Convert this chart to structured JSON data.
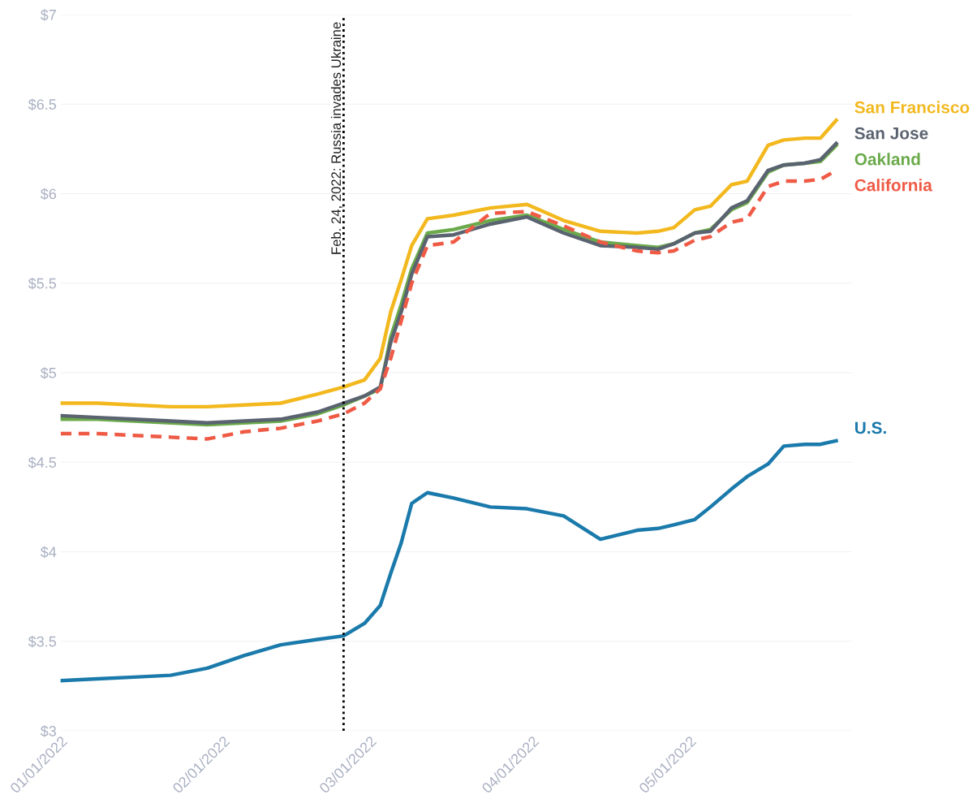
{
  "chart_data": {
    "type": "line",
    "x": [
      "2022-01-01",
      "2022-01-08",
      "2022-01-15",
      "2022-01-22",
      "2022-01-29",
      "2022-02-05",
      "2022-02-12",
      "2022-02-19",
      "2022-02-24",
      "2022-02-28",
      "2022-03-03",
      "2022-03-05",
      "2022-03-07",
      "2022-03-09",
      "2022-03-12",
      "2022-03-17",
      "2022-03-24",
      "2022-03-31",
      "2022-04-07",
      "2022-04-14",
      "2022-04-21",
      "2022-04-25",
      "2022-04-28",
      "2022-05-02",
      "2022-05-05",
      "2022-05-09",
      "2022-05-12",
      "2022-05-16",
      "2022-05-19",
      "2022-05-23",
      "2022-05-26",
      "2022-05-29"
    ],
    "series": [
      {
        "name": "San Francisco",
        "color": "#f2b81e",
        "values": [
          4.83,
          4.83,
          4.82,
          4.81,
          4.81,
          4.82,
          4.83,
          4.88,
          4.92,
          4.96,
          5.08,
          5.34,
          5.52,
          5.71,
          5.86,
          5.88,
          5.92,
          5.94,
          5.85,
          5.79,
          5.78,
          5.79,
          5.81,
          5.91,
          5.93,
          6.05,
          6.07,
          6.27,
          6.3,
          6.31,
          6.31,
          6.41
        ]
      },
      {
        "name": "Oakland",
        "color": "#6aaa4a",
        "values": [
          4.74,
          4.74,
          4.73,
          4.72,
          4.71,
          4.72,
          4.73,
          4.77,
          4.82,
          4.87,
          4.91,
          5.2,
          5.38,
          5.58,
          5.78,
          5.8,
          5.85,
          5.88,
          5.8,
          5.73,
          5.71,
          5.7,
          5.72,
          5.78,
          5.8,
          5.91,
          5.95,
          6.12,
          6.16,
          6.17,
          6.18,
          6.27
        ]
      },
      {
        "name": "San Jose",
        "color": "#5a6370",
        "values": [
          4.76,
          4.75,
          4.74,
          4.73,
          4.72,
          4.73,
          4.74,
          4.78,
          4.83,
          4.87,
          4.92,
          5.17,
          5.34,
          5.55,
          5.76,
          5.77,
          5.83,
          5.87,
          5.78,
          5.71,
          5.7,
          5.69,
          5.72,
          5.78,
          5.79,
          5.92,
          5.96,
          6.13,
          6.16,
          6.17,
          6.19,
          6.28
        ]
      },
      {
        "name": "California",
        "color": "#ef5a45",
        "line_style": "dashed",
        "values": [
          4.66,
          4.66,
          4.65,
          4.64,
          4.63,
          4.67,
          4.69,
          4.73,
          4.77,
          4.83,
          4.91,
          5.08,
          5.29,
          5.5,
          5.71,
          5.73,
          5.89,
          5.9,
          5.82,
          5.73,
          5.68,
          5.67,
          5.68,
          5.74,
          5.76,
          5.84,
          5.86,
          6.04,
          6.07,
          6.07,
          6.08,
          6.13
        ]
      },
      {
        "name": "U.S.",
        "color": "#1a7aab",
        "values": [
          3.28,
          3.29,
          3.3,
          3.31,
          3.35,
          3.42,
          3.48,
          3.51,
          3.53,
          3.6,
          3.7,
          3.88,
          4.05,
          4.27,
          4.33,
          4.3,
          4.25,
          4.24,
          4.2,
          4.07,
          4.12,
          4.13,
          4.15,
          4.18,
          4.25,
          4.35,
          4.42,
          4.49,
          4.59,
          4.6,
          4.6,
          4.62
        ]
      }
    ],
    "xlim": [
      "2022-01-01",
      "2022-06-01"
    ],
    "xticks": [
      {
        "value": "2022-01-01",
        "label": "01/01/2022"
      },
      {
        "value": "2022-02-01",
        "label": "02/01/2022"
      },
      {
        "value": "2022-03-01",
        "label": "03/01/2022"
      },
      {
        "value": "2022-04-01",
        "label": "04/01/2022"
      },
      {
        "value": "2022-05-01",
        "label": "05/01/2022"
      }
    ],
    "ylim": [
      3,
      7
    ],
    "yticks": [
      {
        "value": 3,
        "label": "$3"
      },
      {
        "value": 3.5,
        "label": "$3.5"
      },
      {
        "value": 4,
        "label": "$4"
      },
      {
        "value": 4.5,
        "label": "$4.5"
      },
      {
        "value": 5,
        "label": "$5"
      },
      {
        "value": 5.5,
        "label": "$5.5"
      },
      {
        "value": 6,
        "label": "$6"
      },
      {
        "value": 6.5,
        "label": "$6.5"
      },
      {
        "value": 7,
        "label": "$7"
      }
    ],
    "ref_lines": [
      {
        "axis": "x",
        "value": "2022-02-24",
        "label": "Feb. 24, 2022: Russia invades Ukraine",
        "color": "#000000",
        "line_style": "dotted"
      }
    ],
    "grid": "y",
    "legend": false,
    "marker": "none",
    "line_style": "solid"
  }
}
